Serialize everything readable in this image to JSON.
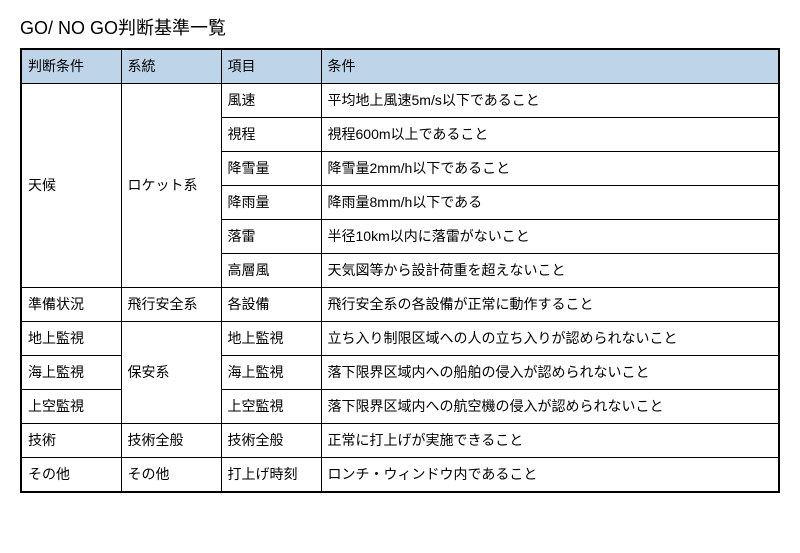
{
  "title": "GO/ NO GO判断基準一覧",
  "columns": [
    "判断条件",
    "系統",
    "項目",
    "条件"
  ],
  "header_bg": "#bed4e9",
  "border_color": "#000000",
  "rows": [
    {
      "c1": "天候",
      "c2": "ロケット系",
      "c3": "風速",
      "c4": "平均地上風速5m/s以下であること",
      "c1_rowspan": 6,
      "c2_rowspan": 6
    },
    {
      "c3": "視程",
      "c4": "視程600m以上であること"
    },
    {
      "c3": "降雪量",
      "c4": "降雪量2mm/h以下であること"
    },
    {
      "c3": "降雨量",
      "c4": "降雨量8mm/h以下である"
    },
    {
      "c3": "落雷",
      "c4": "半径10km以内に落雷がないこと"
    },
    {
      "c3": "高層風",
      "c4": "天気図等から設計荷重を超えないこと"
    },
    {
      "c1": "準備状況",
      "c2": "飛行安全系",
      "c3": "各設備",
      "c4": "飛行安全系の各設備が正常に動作すること"
    },
    {
      "c1": "地上監視",
      "c2": "保安系",
      "c3": "地上監視",
      "c4": "立ち入り制限区域への人の立ち入りが認められないこと",
      "c2_rowspan": 3
    },
    {
      "c1": "海上監視",
      "c3": "海上監視",
      "c4": "落下限界区域内への船舶の侵入が認められないこと"
    },
    {
      "c1": "上空監視",
      "c3": "上空監視",
      "c4": "落下限界区域内への航空機の侵入が認められないこと"
    },
    {
      "c1": "技術",
      "c2": "技術全般",
      "c3": "技術全般",
      "c4": "正常に打上げが実施できること"
    },
    {
      "c1": "その他",
      "c2": "その他",
      "c3": "打上げ時刻",
      "c4": "ロンチ・ウィンドウ内であること"
    }
  ]
}
